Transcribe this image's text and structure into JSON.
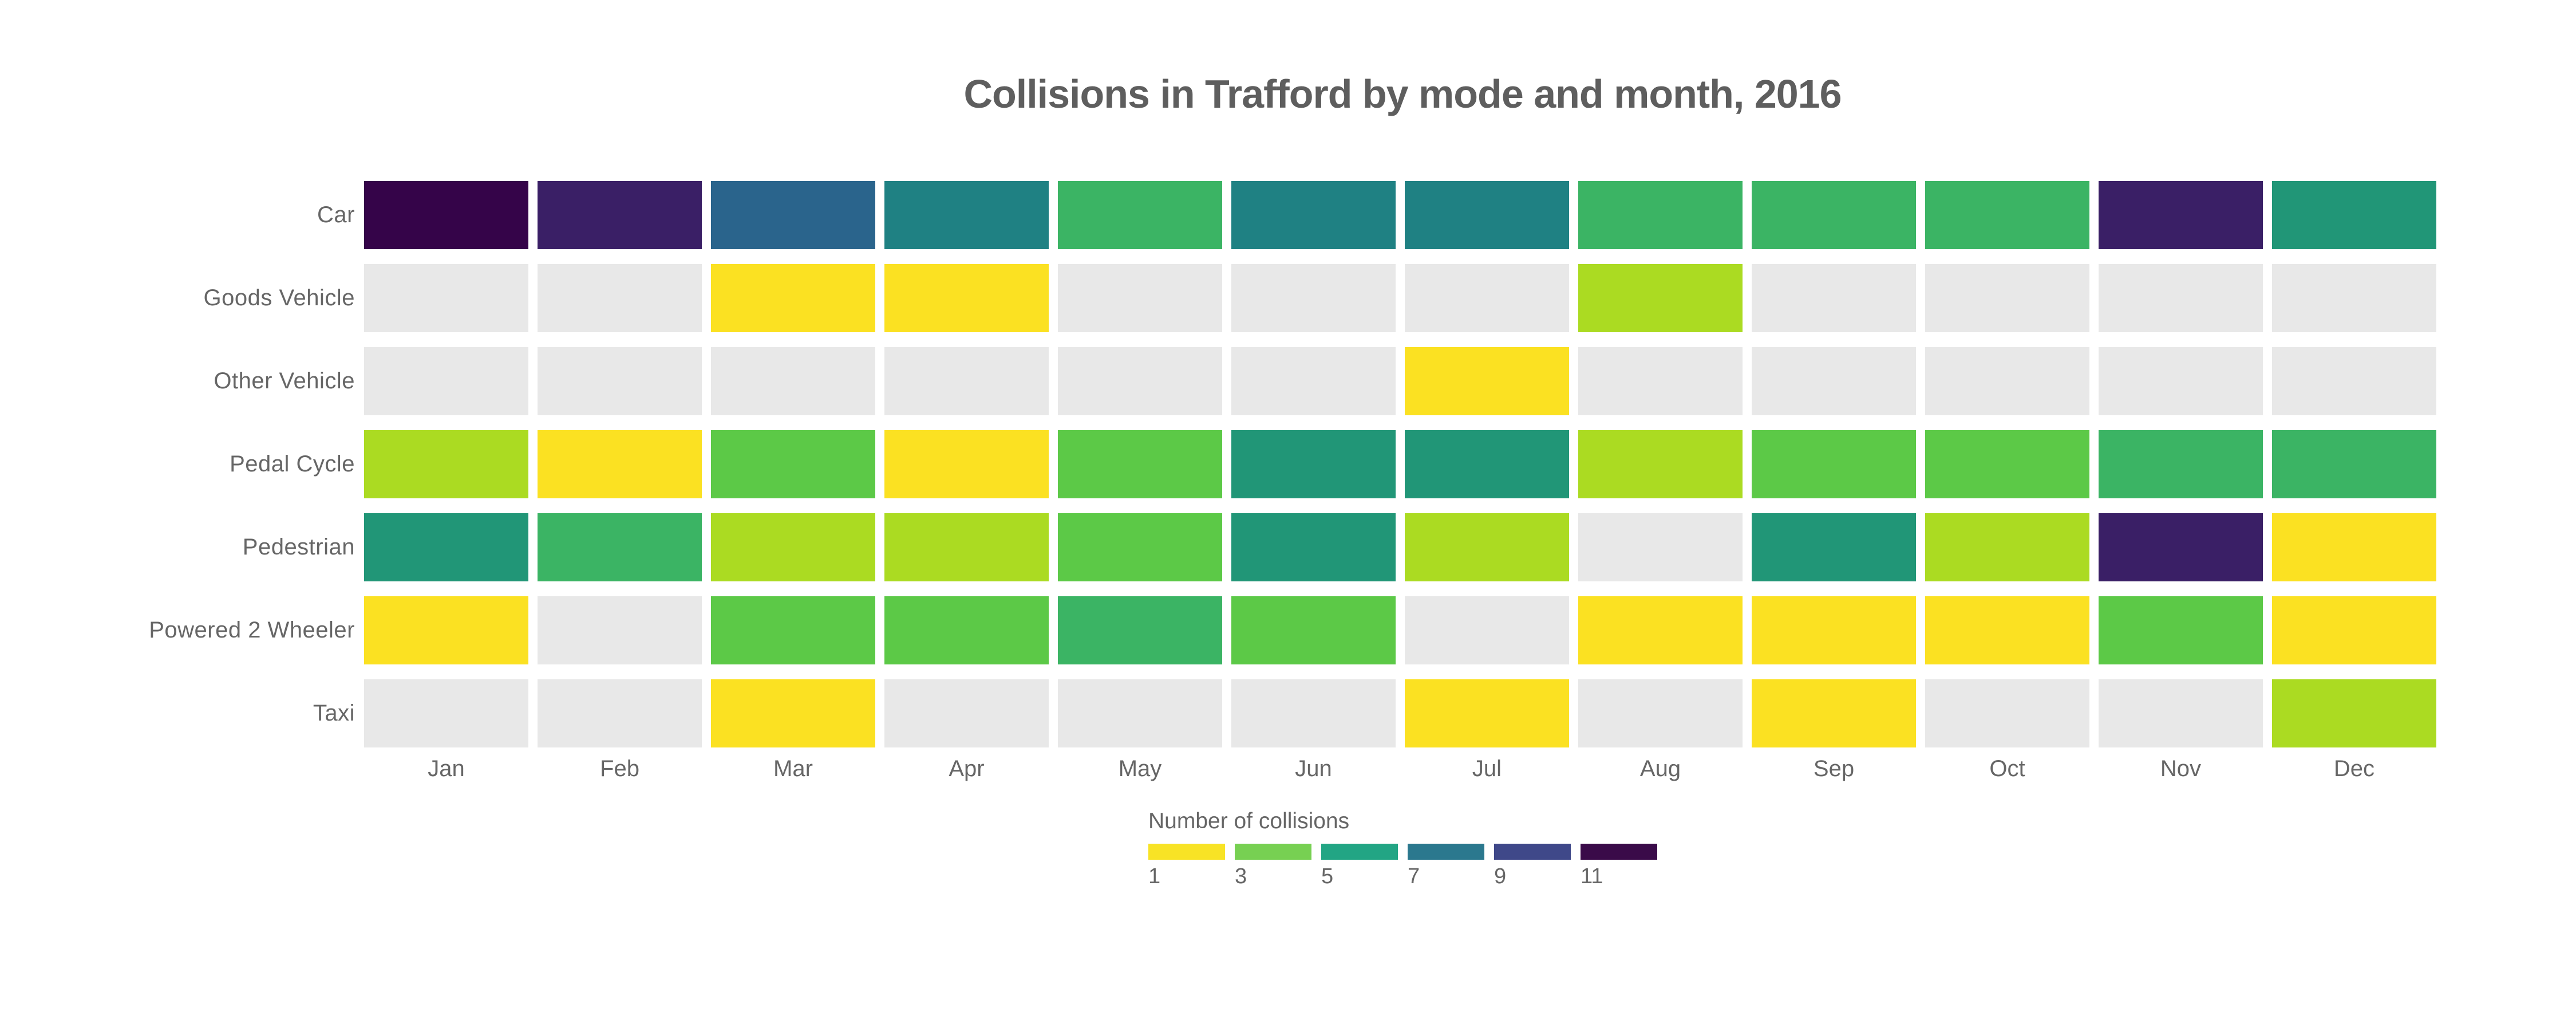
{
  "chart_data": {
    "type": "heatmap",
    "title": "Collisions in Trafford by mode and month, 2016",
    "x_categories": [
      "Jan",
      "Feb",
      "Mar",
      "Apr",
      "May",
      "Jun",
      "Jul",
      "Aug",
      "Sep",
      "Oct",
      "Nov",
      "Dec"
    ],
    "y_categories": [
      "Car",
      "Goods Vehicle",
      "Other Vehicle",
      "Pedal Cycle",
      "Pedestrian",
      "Powered 2 Wheeler",
      "Taxi"
    ],
    "values": [
      [
        11,
        10,
        8,
        6,
        4,
        6,
        6,
        4,
        4,
        4,
        10,
        5
      ],
      [
        null,
        null,
        1,
        1,
        null,
        null,
        null,
        2,
        null,
        null,
        null,
        null
      ],
      [
        null,
        null,
        null,
        null,
        null,
        null,
        1,
        null,
        null,
        null,
        null,
        null
      ],
      [
        2,
        1,
        3,
        1,
        3,
        5,
        5,
        2,
        3,
        3,
        4,
        4
      ],
      [
        5,
        4,
        2,
        2,
        3,
        5,
        2,
        null,
        5,
        2,
        10,
        1
      ],
      [
        1,
        null,
        3,
        3,
        4,
        3,
        null,
        1,
        1,
        1,
        3,
        1
      ],
      [
        null,
        null,
        1,
        null,
        null,
        null,
        1,
        null,
        1,
        null,
        null,
        2
      ]
    ],
    "value_colors": {
      "1": "#FBE122",
      "2": "#ABDB22",
      "3": "#5CC947",
      "4": "#3BB464",
      "5": "#219677",
      "6": "#1F8183",
      "8": "#2A648C",
      "10": "#3A1F66",
      "11": "#350449"
    },
    "no_data_color": "#E8E8E8",
    "color_scale_note": "reversed viridis, gray = no collisions recorded",
    "legend": {
      "title": "Number of collisions",
      "ticks": [
        "1",
        "3",
        "5",
        "7",
        "9",
        "11"
      ],
      "colors": [
        "#F8E325",
        "#77D052",
        "#22A584",
        "#2B788E",
        "#3F4889",
        "#3A0B49"
      ]
    },
    "axis_text_color": "#666666",
    "title_color": "#5E5E5E",
    "grid": "off",
    "legend_position": "bottom-center"
  }
}
